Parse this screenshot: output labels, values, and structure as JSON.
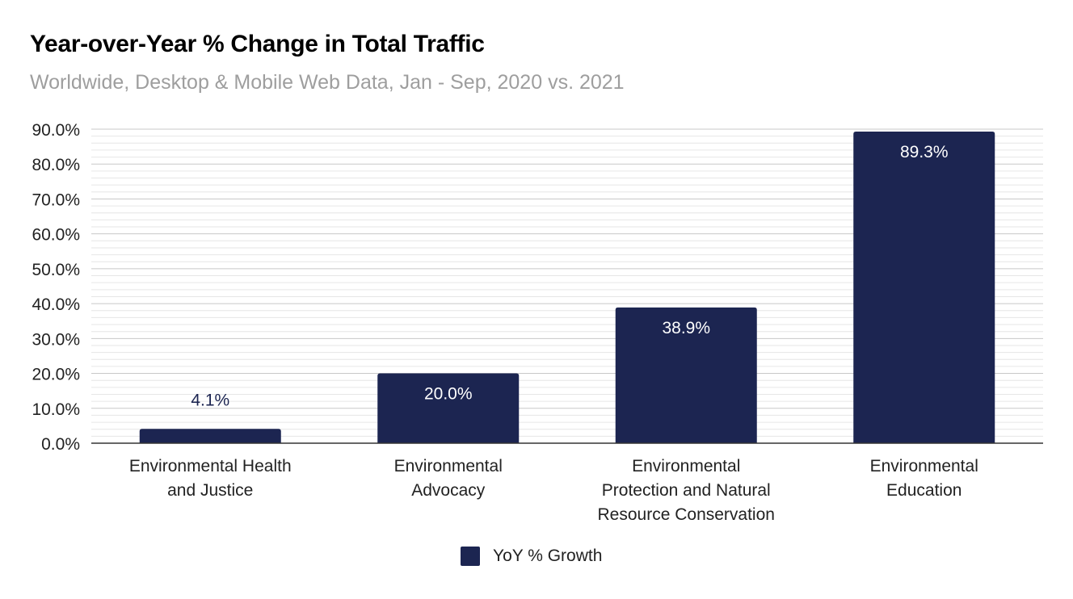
{
  "chart_data": {
    "type": "bar",
    "title": "Year-over-Year % Change in Total Traffic",
    "subtitle": "Worldwide, Desktop & Mobile Web Data, Jan - Sep, 2020 vs. 2021",
    "categories": [
      [
        "Environmental Health",
        "and Justice"
      ],
      [
        "Environmental",
        "Advocacy"
      ],
      [
        "Environmental",
        "Protection and Natural",
        "Resource Conservation"
      ],
      [
        "Environmental",
        "Education"
      ]
    ],
    "series": [
      {
        "name": "YoY % Growth",
        "values": [
          4.1,
          20.0,
          38.9,
          89.3
        ],
        "labels": [
          "4.1%",
          "20.0%",
          "38.9%",
          "89.3%"
        ],
        "color": "#1c2551"
      }
    ],
    "ylim": [
      0,
      90
    ],
    "yticks": [
      0,
      10,
      20,
      30,
      40,
      50,
      60,
      70,
      80,
      90
    ],
    "ytick_labels": [
      "0.0%",
      "10.0%",
      "20.0%",
      "30.0%",
      "40.0%",
      "50.0%",
      "60.0%",
      "70.0%",
      "80.0%",
      "90.0%"
    ],
    "xlabel": "",
    "ylabel": "",
    "grid": true,
    "minor_grid_per_major": 5,
    "legend_position": "bottom"
  }
}
